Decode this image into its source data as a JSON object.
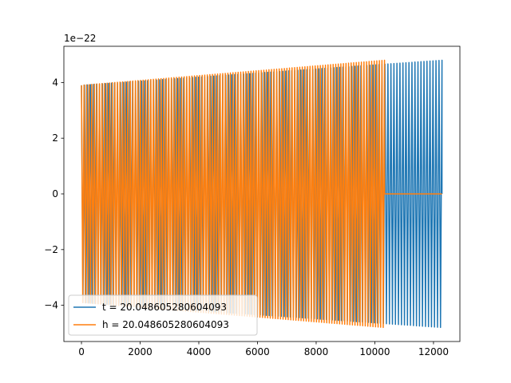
{
  "chart_data": {
    "type": "line",
    "title": "",
    "xlabel": "",
    "ylabel": "",
    "y_offset_label": "1e−22",
    "xlim": [
      -600,
      12900
    ],
    "ylim": [
      -5.3,
      5.3
    ],
    "x_ticks": [
      0,
      2000,
      4000,
      6000,
      8000,
      10000,
      12000
    ],
    "x_tick_labels": [
      "0",
      "2000",
      "4000",
      "6000",
      "8000",
      "10000",
      "12000"
    ],
    "y_ticks": [
      -4,
      -2,
      0,
      2,
      4
    ],
    "y_tick_labels": [
      "−4",
      "−2",
      "0",
      "2",
      "4"
    ],
    "grid": false,
    "legend_position": "lower-left",
    "series": [
      {
        "name": "t = 20.048605280604093",
        "color": "#1f77b4",
        "x_start": 0,
        "x_end": 12290,
        "amplitude_start": 3.9,
        "amplitude_end": 4.8,
        "cycles": 120,
        "flat_intervals": []
      },
      {
        "name": "h = 20.048605280604093",
        "color": "#ff7f0e",
        "x_start": 0,
        "x_end": 10330,
        "amplitude_start": 3.9,
        "amplitude_end": 4.8,
        "cycles": 118,
        "flat_intervals": [
          [
            10330,
            12290
          ]
        ]
      }
    ]
  }
}
